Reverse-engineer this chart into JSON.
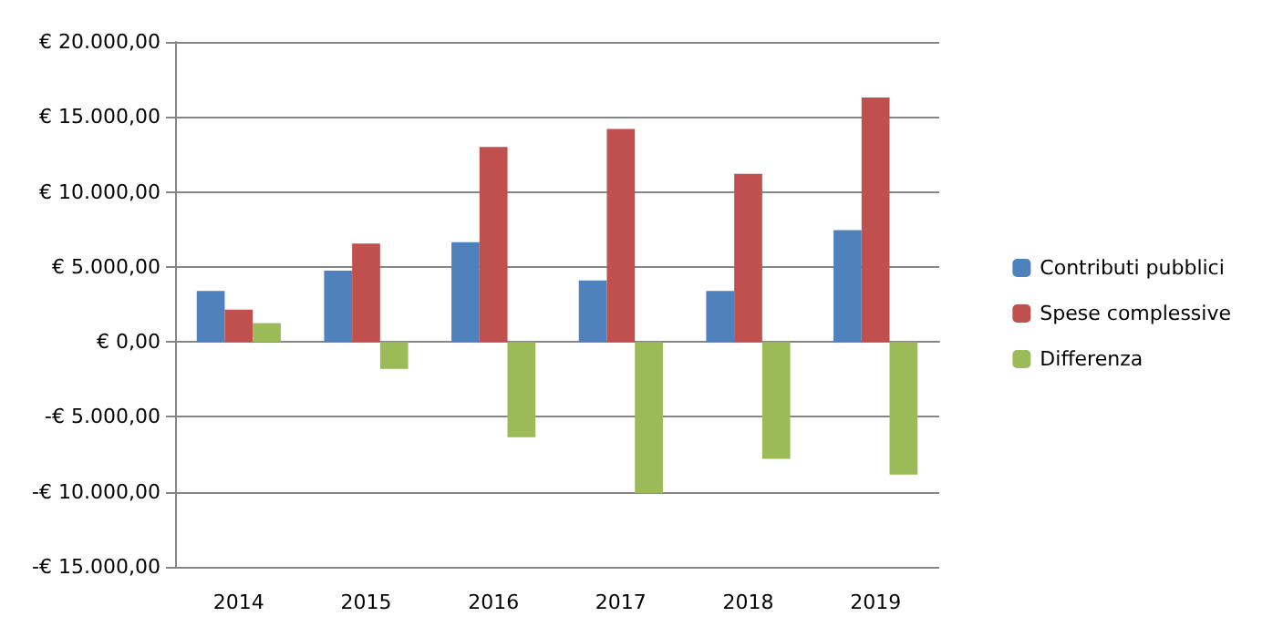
{
  "chart_data": {
    "type": "bar",
    "categories": [
      "2014",
      "2015",
      "2016",
      "2017",
      "2018",
      "2019"
    ],
    "series": [
      {
        "name": "Contributi pubblici",
        "color": "#4f81bd",
        "values": [
          3400,
          4750,
          6650,
          4100,
          3400,
          7450
        ]
      },
      {
        "name": "Spese complessive",
        "color": "#c0504d",
        "values": [
          2150,
          6550,
          13000,
          14200,
          11200,
          16300
        ]
      },
      {
        "name": "Differenza",
        "color": "#9bbb59",
        "values": [
          1250,
          -1800,
          -6350,
          -10100,
          -7800,
          -8850
        ]
      }
    ],
    "ylim": [
      -15000,
      20000
    ],
    "yticks": [
      {
        "value": -15000,
        "label": "-€ 15.000,00"
      },
      {
        "value": -10000,
        "label": "-€ 10.000,00"
      },
      {
        "value": -5000,
        "label": "-€ 5.000,00"
      },
      {
        "value": 0,
        "label": "€ 0,00"
      },
      {
        "value": 5000,
        "label": "€ 5.000,00"
      },
      {
        "value": 10000,
        "label": "€ 10.000,00"
      },
      {
        "value": 15000,
        "label": "€ 15.000,00"
      },
      {
        "value": 20000,
        "label": "€ 20.000,00"
      }
    ],
    "grid": "y",
    "legend": "right"
  }
}
